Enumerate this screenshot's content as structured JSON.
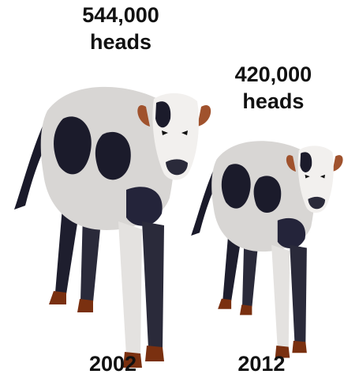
{
  "chart_data": {
    "type": "pictograph",
    "categories": [
      "2002",
      "2012"
    ],
    "values": [
      544000,
      420000
    ],
    "value_labels": [
      "544,000 heads",
      "420,000 heads"
    ]
  }
}
